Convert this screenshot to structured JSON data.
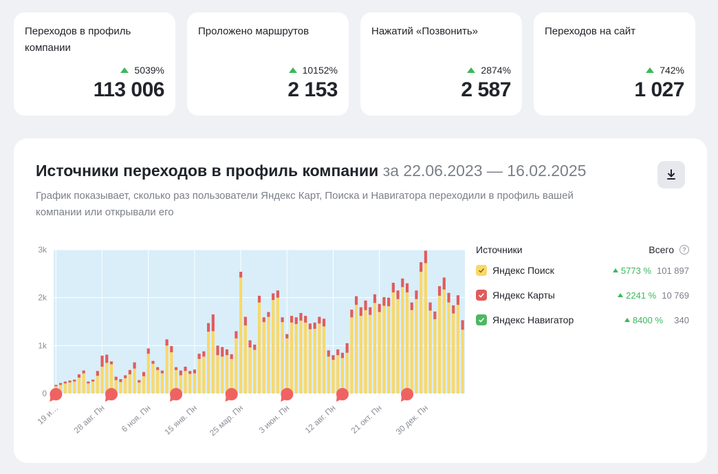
{
  "kpis": [
    {
      "title": "Переходов в профиль компании",
      "delta": "5039%",
      "value": "113 006"
    },
    {
      "title": "Проложено маршрутов",
      "delta": "10152%",
      "value": "2 153"
    },
    {
      "title": "Нажатий «Позвонить»",
      "delta": "2874%",
      "value": "2 587"
    },
    {
      "title": "Переходов на сайт",
      "delta": "742%",
      "value": "1 027"
    }
  ],
  "panel": {
    "title": "Источники переходов в профиль компании",
    "period": "за 22.06.2023 — 16.02.2025",
    "description": "График показывает, сколько раз пользователи Яндекс Карт, Поиска и Навигатора переходили в профиль вашей компании или открывали его",
    "download_icon": "download-icon"
  },
  "legend": {
    "header_label": "Источники",
    "total_label": "Всего",
    "items": [
      {
        "name": "Яндекс Поиск",
        "delta": "5773 %",
        "value": "101 897",
        "color": "#f9d86a"
      },
      {
        "name": "Яндекс Карты",
        "delta": "2241 %",
        "value": "10 769",
        "color": "#e05c5c"
      },
      {
        "name": "Яндекс Навигатор",
        "delta": "8400 %",
        "value": "340",
        "color": "#4cb862"
      }
    ]
  },
  "colors": {
    "accent_green": "#3bb85a",
    "plot_bg": "#d9eef9",
    "marker": "#f06262"
  },
  "chart_data": {
    "type": "bar",
    "stacked": true,
    "ylim": [
      0,
      3000
    ],
    "y_ticks": [
      "0",
      "1k",
      "2k",
      "3k"
    ],
    "x_tick_labels": [
      "19 и…",
      "28 авг. Пн",
      "6 ноя. Пн",
      "15 янв. Пн",
      "25 мар. Пн",
      "3 июн. Пн",
      "12 авг. Пн",
      "21 окт. Пн",
      "30 дек. Пн"
    ],
    "x_tick_indices": [
      0,
      10,
      20,
      30,
      40,
      50,
      60,
      70,
      80
    ],
    "marker_indices": [
      0,
      12,
      26,
      38,
      50,
      62,
      76
    ],
    "series": [
      {
        "name": "Яндекс Поиск",
        "color": "#f9d86a",
        "values": [
          150,
          180,
          210,
          230,
          250,
          330,
          420,
          210,
          250,
          370,
          560,
          640,
          610,
          280,
          240,
          320,
          400,
          520,
          230,
          360,
          830,
          620,
          490,
          420,
          1000,
          860,
          490,
          380,
          470,
          410,
          420,
          720,
          770,
          1290,
          1300,
          800,
          770,
          800,
          720,
          1150,
          2420,
          1420,
          960,
          910,
          1900,
          1490,
          1600,
          1950,
          2000,
          1490,
          1150,
          1480,
          1450,
          1520,
          1480,
          1340,
          1350,
          1460,
          1400,
          770,
          700,
          800,
          740,
          850,
          1590,
          1850,
          1620,
          1740,
          1640,
          1890,
          1700,
          1830,
          1820,
          2110,
          1970,
          2220,
          2110,
          1740,
          1970,
          2540,
          2720,
          1730,
          1550,
          2040,
          2170,
          1900,
          1670,
          1850,
          1330
        ]
      },
      {
        "name": "Яндекс Карты",
        "color": "#e05c5c",
        "values": [
          30,
          40,
          40,
          40,
          40,
          70,
          60,
          40,
          40,
          100,
          230,
          170,
          60,
          70,
          60,
          60,
          90,
          130,
          50,
          90,
          110,
          60,
          60,
          60,
          130,
          130,
          60,
          100,
          90,
          60,
          80,
          110,
          110,
          180,
          350,
          200,
          200,
          120,
          100,
          150,
          120,
          180,
          150,
          110,
          140,
          100,
          100,
          140,
          150,
          100,
          90,
          140,
          140,
          160,
          140,
          120,
          130,
          140,
          160,
          130,
          100,
          120,
          110,
          200,
          160,
          180,
          180,
          200,
          160,
          180,
          170,
          180,
          180,
          200,
          180,
          180,
          190,
          160,
          180,
          200,
          260,
          170,
          160,
          200,
          250,
          200,
          170,
          200,
          200
        ]
      },
      {
        "name": "Яндекс Навигатор",
        "color": "#4cb862",
        "values": [
          0,
          0,
          0,
          0,
          0,
          0,
          0,
          0,
          0,
          0,
          0,
          0,
          0,
          0,
          0,
          0,
          0,
          0,
          0,
          0,
          0,
          0,
          0,
          0,
          0,
          0,
          0,
          0,
          0,
          0,
          0,
          0,
          0,
          0,
          0,
          0,
          0,
          0,
          0,
          0,
          0,
          0,
          0,
          0,
          0,
          0,
          0,
          0,
          0,
          0,
          0,
          0,
          0,
          0,
          0,
          0,
          0,
          0,
          0,
          0,
          0,
          0,
          0,
          0,
          0,
          0,
          0,
          0,
          0,
          0,
          0,
          0,
          0,
          0,
          0,
          0,
          0,
          0,
          0,
          0,
          0,
          0,
          0,
          0,
          0,
          0,
          0,
          0,
          0
        ]
      }
    ]
  }
}
